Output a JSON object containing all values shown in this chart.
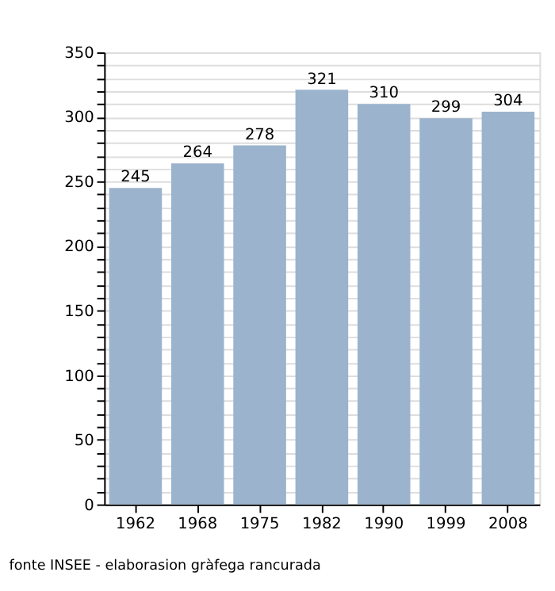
{
  "chart_data": {
    "type": "bar",
    "categories": [
      "1962",
      "1968",
      "1975",
      "1982",
      "1990",
      "1999",
      "2008"
    ],
    "values": [
      245,
      264,
      278,
      321,
      310,
      299,
      304
    ],
    "color": "#9bb3cc",
    "data_labels": true,
    "ylim": [
      0,
      350
    ],
    "yticks": [
      0,
      {
        "value": 10,
        "label": null
      },
      {
        "value": 20,
        "label": null
      },
      {
        "value": 30,
        "label": null
      },
      {
        "value": 40,
        "label": null
      },
      50,
      {
        "value": 60,
        "label": null
      },
      {
        "value": 70,
        "label": null
      },
      {
        "value": 80,
        "label": null
      },
      {
        "value": 90,
        "label": null
      },
      100,
      {
        "value": 110,
        "label": null
      },
      {
        "value": 120,
        "label": null
      },
      {
        "value": 130,
        "label": null
      },
      {
        "value": 140,
        "label": null
      },
      150,
      {
        "value": 160,
        "label": null
      },
      {
        "value": 170,
        "label": null
      },
      {
        "value": 180,
        "label": null
      },
      {
        "value": 190,
        "label": null
      },
      200,
      {
        "value": 210,
        "label": null
      },
      {
        "value": 220,
        "label": null
      },
      {
        "value": 230,
        "label": null
      },
      {
        "value": 240,
        "label": null
      },
      250,
      {
        "value": 260,
        "label": null
      },
      {
        "value": 270,
        "label": null
      },
      {
        "value": 280,
        "label": null
      },
      {
        "value": 290,
        "label": null
      },
      300,
      {
        "value": 310,
        "label": null
      },
      {
        "value": 320,
        "label": null
      },
      {
        "value": 330,
        "label": null
      },
      {
        "value": 340,
        "label": null
      },
      350
    ],
    "grid": "y",
    "annotations": [
      "fonte INSEE - elaborasion gràfega rancurada"
    ]
  }
}
